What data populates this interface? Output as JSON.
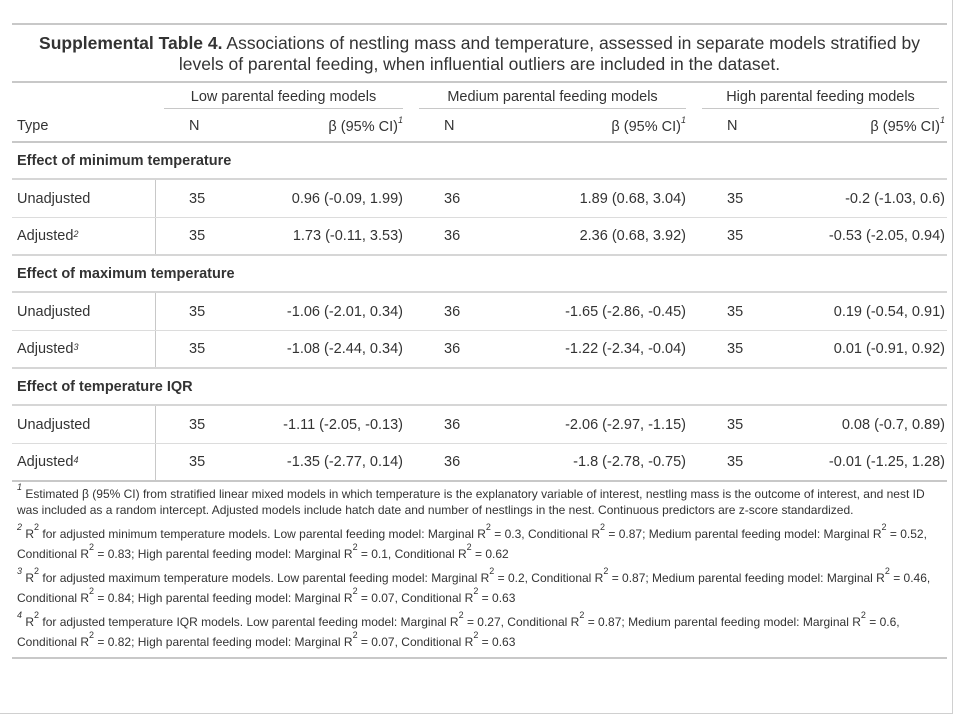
{
  "caption": {
    "label": "Supplemental Table 4.",
    "text": " Associations of nestling mass and temperature, assessed in separate models stratified by levels of parental feeding, when influential outliers are included in the dataset."
  },
  "spanners": [
    "Low parental feeding models",
    "Medium parental feeding models",
    "High parental feeding models"
  ],
  "columns": {
    "type": "Type",
    "n": "N",
    "beta": "β (95% CI)",
    "beta_fn": "1"
  },
  "groups": [
    {
      "title": "Effect of minimum temperature",
      "rows": [
        {
          "type": "Unadjusted",
          "fn": "",
          "cells": [
            "35",
            "0.96 (-0.09, 1.99)",
            "36",
            "1.89 (0.68, 3.04)",
            "35",
            "-0.2 (-1.03, 0.6)"
          ]
        },
        {
          "type": "Adjusted",
          "fn": "2",
          "cells": [
            "35",
            "1.73 (-0.11, 3.53)",
            "36",
            "2.36 (0.68, 3.92)",
            "35",
            "-0.53 (-2.05, 0.94)"
          ]
        }
      ]
    },
    {
      "title": "Effect of maximum temperature",
      "rows": [
        {
          "type": "Unadjusted",
          "fn": "",
          "cells": [
            "35",
            "-1.06 (-2.01, 0.34)",
            "36",
            "-1.65 (-2.86, -0.45)",
            "35",
            "0.19 (-0.54, 0.91)"
          ]
        },
        {
          "type": "Adjusted",
          "fn": "3",
          "cells": [
            "35",
            "-1.08 (-2.44, 0.34)",
            "36",
            "-1.22 (-2.34, -0.04)",
            "35",
            "0.01 (-0.91, 0.92)"
          ]
        }
      ]
    },
    {
      "title": "Effect of temperature IQR",
      "rows": [
        {
          "type": "Unadjusted",
          "fn": "",
          "cells": [
            "35",
            "-1.11 (-2.05, -0.13)",
            "36",
            "-2.06 (-2.97, -1.15)",
            "35",
            "0.08 (-0.7, 0.89)"
          ]
        },
        {
          "type": "Adjusted",
          "fn": "4",
          "cells": [
            "35",
            "-1.35 (-2.77, 0.14)",
            "36",
            "-1.8 (-2.78, -0.75)",
            "35",
            "-0.01 (-1.25, 1.28)"
          ]
        }
      ]
    }
  ],
  "notes": [
    {
      "mark": "1",
      "html": "Estimated β (95% CI) from stratified linear mixed models in which temperature is the explanatory variable of interest, nestling mass is the outcome of interest, and nest ID was included as a random intercept. Adjusted models include hatch date and number of nestlings in the nest. Continuous predictors are z-score standardized."
    },
    {
      "mark": "2",
      "html": "R<sup class=\"r\">2</sup> for adjusted minimum temperature models. Low parental feeding model: Marginal R<sup class=\"r\">2</sup> = 0.3, Conditional R<sup class=\"r\">2</sup> = 0.87; Medium parental feeding model: Marginal R<sup class=\"r\">2</sup> = 0.52, Conditional R<sup class=\"r\">2</sup> = 0.83; High parental feeding model: Marginal R<sup class=\"r\">2</sup> = 0.1, Conditional R<sup class=\"r\">2</sup> = 0.62"
    },
    {
      "mark": "3",
      "html": "R<sup class=\"r\">2</sup> for adjusted maximum temperature models. Low parental feeding model: Marginal R<sup class=\"r\">2</sup> = 0.2, Conditional R<sup class=\"r\">2</sup> = 0.87; Medium parental feeding model: Marginal R<sup class=\"r\">2</sup> = 0.46, Conditional R<sup class=\"r\">2</sup> = 0.84; High parental feeding model: Marginal R<sup class=\"r\">2</sup> = 0.07, Conditional R<sup class=\"r\">2</sup> = 0.63"
    },
    {
      "mark": "4",
      "html": "R<sup class=\"r\">2</sup> for adjusted temperature IQR models. Low parental feeding model: Marginal R<sup class=\"r\">2</sup> = 0.27, Conditional R<sup class=\"r\">2</sup> = 0.87; Medium parental feeding model: Marginal R<sup class=\"r\">2</sup> = 0.6, Conditional R<sup class=\"r\">2</sup> = 0.82; High parental feeding model: Marginal R<sup class=\"r\">2</sup> = 0.07, Conditional R<sup class=\"r\">2</sup> = 0.63"
    }
  ]
}
